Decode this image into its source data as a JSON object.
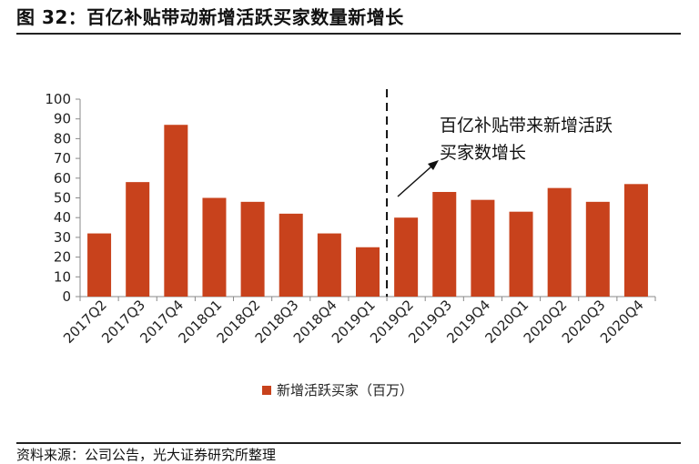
{
  "figure": {
    "title": "图 32：百亿补贴带动新增活跃买家数量新增长",
    "source": "资料来源：公司公告，光大证券研究所整理"
  },
  "chart_data": {
    "type": "bar",
    "categories": [
      "2017Q2",
      "2017Q3",
      "2017Q4",
      "2018Q1",
      "2018Q2",
      "2018Q3",
      "2018Q4",
      "2019Q1",
      "2019Q2",
      "2019Q3",
      "2019Q4",
      "2020Q1",
      "2020Q2",
      "2020Q3",
      "2020Q4"
    ],
    "series": [
      {
        "name": "新增活跃买家（百万）",
        "values": [
          32,
          58,
          87,
          50,
          48,
          42,
          32,
          25,
          40,
          53,
          49,
          43,
          55,
          48,
          57
        ]
      }
    ],
    "ylim": [
      0,
      100
    ],
    "yticks": [
      0,
      10,
      20,
      30,
      40,
      50,
      60,
      70,
      80,
      90,
      100
    ],
    "bar_color": "#C8421C",
    "annotation": {
      "lines": [
        "百亿补贴带来新增活跃",
        "买家数增长"
      ],
      "divider_between": [
        "2019Q1",
        "2019Q2"
      ],
      "divider_style": "dashed"
    },
    "legend": {
      "position": "bottom"
    },
    "grid": false
  }
}
